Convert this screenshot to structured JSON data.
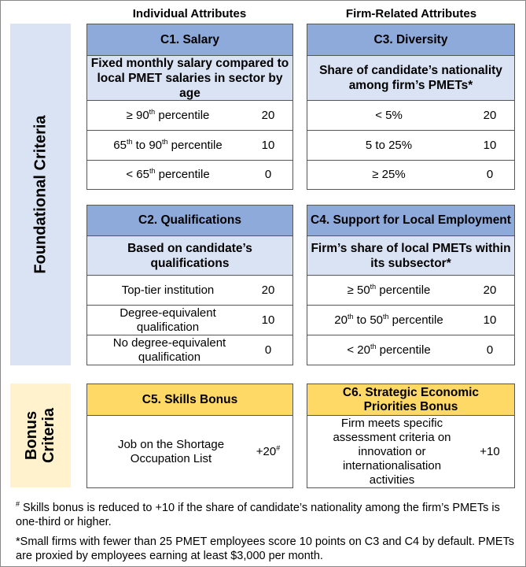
{
  "column_headings": {
    "individual": "Individual Attributes",
    "firm": "Firm-Related Attributes"
  },
  "sidebars": {
    "foundational": "Foundational Criteria",
    "bonus_line1": "Bonus",
    "bonus_line2": "Criteria"
  },
  "colors": {
    "foundational_header": "#8eaadb",
    "foundational_sub": "#dae3f3",
    "bonus_header": "#ffd966",
    "bonus_side": "#fff2cc"
  },
  "c1": {
    "title": "C1. Salary",
    "subtitle": "Fixed monthly salary compared to local PMET salaries in sector by age",
    "rows": [
      {
        "pre": "≥ 90",
        "sup": "th",
        "post": " percentile",
        "points": "20"
      },
      {
        "pre": "65",
        "sup": "th",
        "mid": " to 90",
        "sup2": "th",
        "post": " percentile",
        "points": "10"
      },
      {
        "pre": "< 65",
        "sup": "th",
        "post": " percentile",
        "points": "0"
      }
    ]
  },
  "c3": {
    "title": "C3. Diversity",
    "subtitle": "Share of candidate’s nationality among firm’s PMETs*",
    "rows": [
      {
        "label": "< 5%",
        "points": "20"
      },
      {
        "label": "5 to 25%",
        "points": "10"
      },
      {
        "label": "≥ 25%",
        "points": "0"
      }
    ]
  },
  "c2": {
    "title": "C2. Qualifications",
    "subtitle": "Based on candidate’s qualifications",
    "rows": [
      {
        "label": "Top-tier institution",
        "points": "20"
      },
      {
        "label": "Degree-equivalent qualification",
        "points": "10"
      },
      {
        "label": "No degree-equivalent qualification",
        "points": "0"
      }
    ]
  },
  "c4": {
    "title": "C4. Support for Local Employment",
    "subtitle": "Firm’s share of local PMETs within its subsector*",
    "rows": [
      {
        "pre": "≥ 50",
        "sup": "th",
        "post": " percentile",
        "points": "20"
      },
      {
        "pre": "20",
        "sup": "th",
        "mid": " to 50",
        "sup2": "th",
        "post": " percentile",
        "points": "10"
      },
      {
        "pre": "< 20",
        "sup": "th",
        "post": " percentile",
        "points": "0"
      }
    ]
  },
  "c5": {
    "title": "C5. Skills Bonus",
    "label": "Job on the Shortage Occupation List",
    "points": "+20",
    "points_sup": "#"
  },
  "c6": {
    "title": "C6. Strategic Economic Priorities Bonus",
    "label": "Firm meets specific assessment criteria on innovation or internationalisation activities",
    "points": "+10"
  },
  "notes": {
    "hash_sup": "#",
    "hash": " Skills bonus is reduced to +10 if the share of candidate’s nationality among the firm’s PMETs is one-third or higher.",
    "star": "*Small firms with fewer than 25 PMET employees score 10 points on C3 and C4 by default. PMETs are proxied by employees earning at least $3,000 per month."
  }
}
